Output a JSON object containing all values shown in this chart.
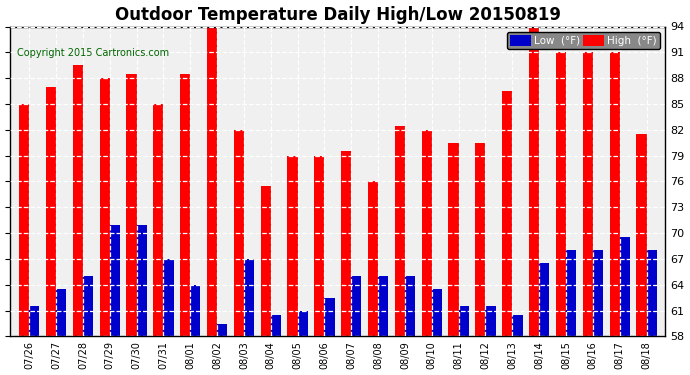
{
  "title": "Outdoor Temperature Daily High/Low 20150819",
  "copyright": "Copyright 2015 Cartronics.com",
  "ylim": [
    58.0,
    94.0
  ],
  "yticks": [
    58.0,
    61.0,
    64.0,
    67.0,
    70.0,
    73.0,
    76.0,
    79.0,
    82.0,
    85.0,
    88.0,
    91.0,
    94.0
  ],
  "dates": [
    "07/26",
    "07/27",
    "07/28",
    "07/29",
    "07/30",
    "07/31",
    "08/01",
    "08/02",
    "08/03",
    "08/04",
    "08/05",
    "08/06",
    "08/07",
    "08/08",
    "08/09",
    "08/10",
    "08/11",
    "08/12",
    "08/13",
    "08/14",
    "08/15",
    "08/16",
    "08/17",
    "08/18"
  ],
  "high": [
    85.0,
    87.0,
    89.5,
    88.0,
    88.5,
    85.0,
    88.5,
    94.0,
    82.0,
    75.5,
    79.0,
    79.0,
    79.5,
    76.0,
    82.5,
    82.0,
    80.5,
    80.5,
    86.5,
    94.5,
    91.0,
    91.0,
    91.0,
    81.5
  ],
  "low": [
    61.5,
    63.5,
    65.0,
    71.0,
    71.0,
    67.0,
    64.0,
    59.5,
    67.0,
    60.5,
    61.0,
    62.5,
    65.0,
    65.0,
    65.0,
    63.5,
    61.5,
    61.5,
    60.5,
    66.5,
    68.0,
    68.0,
    69.5,
    68.0
  ],
  "high_color": "#ff0000",
  "low_color": "#0000cc",
  "background_color": "#ffffff",
  "plot_bg_color": "#f0f0f0",
  "grid_color": "#ffffff",
  "title_fontsize": 12,
  "copyright_color": "#006600",
  "legend_low_label": "Low  (°F)",
  "legend_high_label": "High  (°F)"
}
